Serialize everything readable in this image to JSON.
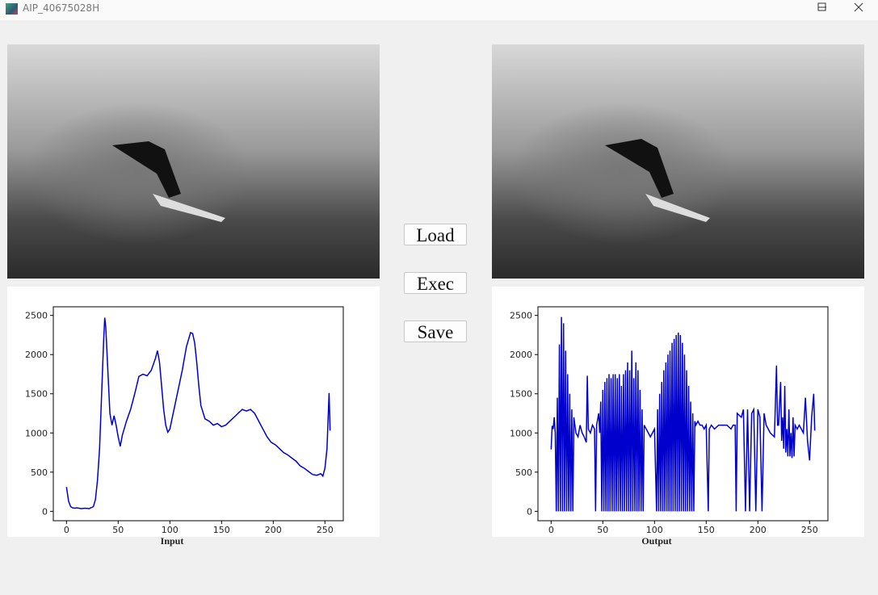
{
  "window": {
    "title": "AIP_40675028H"
  },
  "buttons": [
    "Load",
    "Exec",
    "Save"
  ],
  "chart_data": [
    {
      "type": "line",
      "xlabel": "Input",
      "x": [
        0,
        2,
        4,
        6,
        8,
        10,
        14,
        18,
        22,
        26,
        28,
        30,
        32,
        34,
        36,
        37,
        38,
        40,
        42,
        44,
        46,
        48,
        50,
        52,
        54,
        58,
        62,
        66,
        70,
        74,
        78,
        82,
        86,
        88,
        90,
        92,
        94,
        96,
        98,
        100,
        104,
        108,
        112,
        116,
        120,
        122,
        124,
        126,
        128,
        130,
        134,
        138,
        142,
        146,
        150,
        154,
        158,
        162,
        166,
        170,
        174,
        178,
        182,
        186,
        190,
        194,
        198,
        202,
        206,
        210,
        214,
        218,
        222,
        226,
        230,
        234,
        238,
        242,
        246,
        248,
        250,
        252,
        254,
        255
      ],
      "series": [
        {
          "color": "#0000cc",
          "values": [
            310,
            130,
            60,
            45,
            40,
            45,
            35,
            40,
            35,
            60,
            150,
            400,
            800,
            1500,
            2200,
            2470,
            2350,
            1800,
            1250,
            1100,
            1220,
            1100,
            950,
            830,
            970,
            1150,
            1300,
            1500,
            1720,
            1750,
            1730,
            1800,
            1950,
            2050,
            1900,
            1600,
            1300,
            1100,
            1010,
            1050,
            1300,
            1550,
            1800,
            2100,
            2280,
            2270,
            2150,
            1900,
            1600,
            1350,
            1180,
            1150,
            1100,
            1120,
            1080,
            1100,
            1150,
            1200,
            1250,
            1300,
            1280,
            1300,
            1250,
            1150,
            1050,
            950,
            880,
            850,
            800,
            750,
            720,
            680,
            640,
            580,
            550,
            510,
            470,
            460,
            480,
            450,
            550,
            800,
            1510,
            1030
          ]
        }
      ],
      "xlim": [
        -12.75,
        267.75
      ],
      "ylim": [
        -120,
        2610
      ],
      "xticks": [
        0,
        50,
        100,
        150,
        200,
        250
      ],
      "yticks": [
        0,
        500,
        1000,
        1500,
        2000,
        2500
      ]
    },
    {
      "type": "line",
      "xlabel": "Output",
      "x": [
        0,
        1,
        2,
        3,
        4,
        5,
        6,
        7,
        8,
        9,
        10,
        11,
        12,
        13,
        14,
        15,
        16,
        17,
        18,
        19,
        20,
        21,
        22,
        24,
        26,
        28,
        30,
        32,
        34,
        35,
        36,
        38,
        40,
        42,
        43,
        44,
        46,
        47,
        48,
        49,
        50,
        51,
        52,
        53,
        54,
        55,
        56,
        57,
        58,
        59,
        60,
        61,
        62,
        63,
        64,
        65,
        66,
        67,
        68,
        69,
        70,
        71,
        72,
        73,
        74,
        75,
        76,
        77,
        78,
        79,
        80,
        81,
        82,
        83,
        84,
        85,
        86,
        87,
        88,
        89,
        90,
        92,
        94,
        96,
        98,
        100,
        102,
        103,
        104,
        105,
        106,
        107,
        108,
        109,
        110,
        111,
        112,
        113,
        114,
        115,
        116,
        117,
        118,
        119,
        120,
        121,
        122,
        123,
        124,
        125,
        126,
        127,
        128,
        129,
        130,
        131,
        132,
        133,
        134,
        135,
        136,
        137,
        138,
        139,
        140,
        142,
        144,
        146,
        148,
        150,
        152,
        153,
        155,
        158,
        162,
        166,
        170,
        174,
        176,
        178,
        179,
        180,
        184,
        186,
        188,
        190,
        192,
        194,
        196,
        198,
        200,
        202,
        204,
        206,
        208,
        212,
        216,
        218,
        219,
        220,
        222,
        223,
        224,
        225,
        226,
        227,
        228,
        229,
        230,
        231,
        232,
        233,
        234,
        235,
        236,
        238,
        240,
        244,
        246,
        248,
        250,
        252,
        254,
        255
      ],
      "series": [
        {
          "color": "#0000cc",
          "values": [
            790,
            1090,
            1050,
            1200,
            1000,
            0,
            1450,
            0,
            2130,
            0,
            2480,
            0,
            2400,
            0,
            2050,
            0,
            1750,
            0,
            1500,
            0,
            1300,
            0,
            1200,
            1000,
            950,
            1100,
            1000,
            950,
            880,
            1730,
            1050,
            1000,
            1100,
            1050,
            0,
            1100,
            1250,
            1000,
            1400,
            0,
            1550,
            0,
            1650,
            0,
            1700,
            0,
            1750,
            0,
            1700,
            0,
            1750,
            0,
            1750,
            0,
            1700,
            0,
            1750,
            0,
            1600,
            0,
            1750,
            0,
            1800,
            0,
            1900,
            0,
            1800,
            0,
            2050,
            0,
            1700,
            0,
            1900,
            0,
            1800,
            0,
            1550,
            0,
            1300,
            0,
            1100,
            1050,
            1000,
            950,
            1000,
            1050,
            0,
            1300,
            0,
            1500,
            0,
            1650,
            0,
            1800,
            0,
            1900,
            0,
            2000,
            0,
            2050,
            0,
            2150,
            0,
            2200,
            0,
            2250,
            0,
            2280,
            0,
            2250,
            0,
            2150,
            0,
            2000,
            0,
            1800,
            0,
            1600,
            0,
            1400,
            0,
            1250,
            0,
            1150,
            1100,
            1150,
            1100,
            1100,
            1050,
            1100,
            0,
            1050,
            1100,
            1050,
            1100,
            1100,
            1100,
            1050,
            1100,
            1100,
            0,
            1250,
            1200,
            1300,
            0,
            1300,
            0,
            1250,
            1300,
            0,
            1300,
            1200,
            0,
            1250,
            1100,
            1000,
            950,
            1860,
            1100,
            1100,
            1650,
            900,
            1200,
            800,
            1600,
            750,
            1050,
            700,
            1300,
            700,
            1000,
            680,
            1200,
            700,
            1100,
            1050,
            1100,
            1000,
            1450,
            900,
            650,
            1200,
            1500,
            1030
          ]
        }
      ],
      "xlim": [
        -12.75,
        267.75
      ],
      "ylim": [
        -120,
        2610
      ],
      "xticks": [
        0,
        50,
        100,
        150,
        200,
        250
      ],
      "yticks": [
        0,
        500,
        1000,
        1500,
        2000,
        2500
      ]
    }
  ]
}
